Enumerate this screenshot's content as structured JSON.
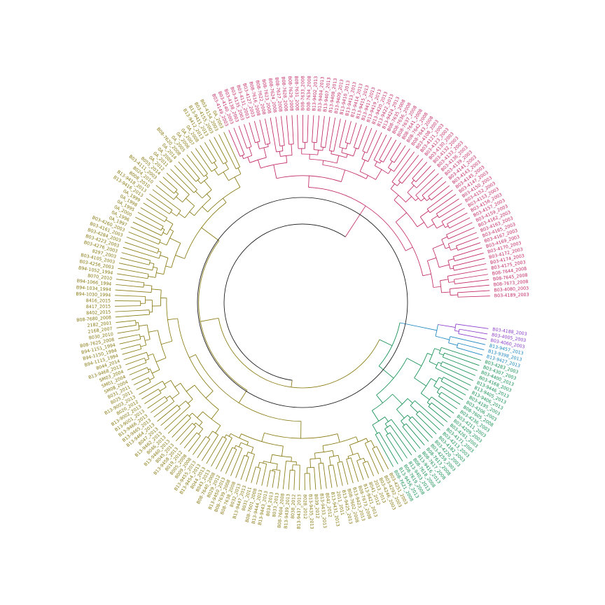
{
  "clades": [
    {
      "id": "purple",
      "color": "#8b3ec9",
      "labels": [
        "B03-4188_2003",
        "B03-4005_2003",
        "B03-4060_2003"
      ]
    },
    {
      "id": "blue",
      "color": "#1b86c0",
      "labels": [
        "B13-9457_2013",
        "B13-9398_2013",
        "B13-9427_2013"
      ]
    },
    {
      "id": "green",
      "color": "#138f52",
      "labels": [
        "B03-4283_2003",
        "B03-4307_2003",
        "B03-4400_2013",
        "B03-4168_2003",
        "B13-9446_2013",
        "B13-9405_2013",
        "B13-9406_2013",
        "B03-4195_2003",
        "B03-4206_2003",
        "B08-7605_2008",
        "B03-4236_2003",
        "B03-4211_2003",
        "B03-4209_2003",
        "B03-4261_2003",
        "B03-4171_2003",
        "B03-4213_2003",
        "B03-4182_2003",
        "B03-4220_2003",
        "B03-4259_2003",
        "B08-7613_2008",
        "B08-7617_2008",
        "B13-9416_2013",
        "B08-7618_2008",
        "B13-9403_2013",
        "B08-7619_2008",
        "B13-9456_2013",
        "B08-7621_2008"
      ]
    },
    {
      "id": "olive",
      "color": "#8a7a12",
      "labels": [
        "B03-4251_2003",
        "B03-4292_2003",
        "B03-4246_2003",
        "2013_2013",
        "8041_2012",
        "B13-9421_2013",
        "B08-7673_2008",
        "B13-9423_2013",
        "B08-7602_2008",
        "B13-9425_2013",
        "2011_2011",
        "B13-9431_2013",
        "8042_2012",
        "B13-9433_2013",
        "8039_2012",
        "B13-9435_2013",
        "8028_2012",
        "B13-9437_2013",
        "8038_2012",
        "B13-9439_2013",
        "B08-7604_2008",
        "8033_2013",
        "8034_2013",
        "B13-9443_2013",
        "B13-9444_2013",
        "B08-7601_2008",
        "8031_2011",
        "B13-9447_2013",
        "8032_2013",
        "B08-7638_2008",
        "B08-7639_2008",
        "B13-9450_2013",
        "8029_2012",
        "B08-7640_2008",
        "8043_2013",
        "8044_2013",
        "B13-9454_2013",
        "B13-9455_2013",
        "8009_2008",
        "8005_2008",
        "8019_2012",
        "B13-9458_2013",
        "8045_2013",
        "B13-9460_2013",
        "8046_2013",
        "B13-9462_2013",
        "8047_2013",
        "B13-9464_2013",
        "B13-9465_2013",
        "B13-9466_2013",
        "B13-9001_2013",
        "B13-9002_2013",
        "8020_2012",
        "B13-9003_2013",
        "8025_2011",
        "8031_2011",
        "SM08_2004",
        "SM01_2004",
        "SM03_2004",
        "B13-9468_2013",
        "8044_2014",
        "B94-1115_1994",
        "B94-1150_1994",
        "B94-1151_1994",
        "B08-7625_2008",
        "8030_2010",
        "2168_2007",
        "2182_2001",
        "B08-7680_2008",
        "8402_2015",
        "8417_2015",
        "8416_2015",
        "B94-1030_1994",
        "B94-1034_1994",
        "B94-1066_1994",
        "8070_2010",
        "B94-1052_1994",
        "B03-4256_2003",
        "B03-4105_2003",
        "8297_2003",
        "B03-4276_2003",
        "B03-4223_2003",
        "B03-4284_2003",
        "B03-4161_2003",
        "B03-4260_2003",
        "0A_1997",
        "0A_1996",
        "0A_2000",
        "0A_1995",
        "0A_1998",
        "0A_1999",
        "B13-9416_2013",
        "B13-9418_2013",
        "8008_2010",
        "8024_2010",
        "B03-4111_2003",
        "8055_2014",
        "0A_2012",
        "0A_2011",
        "0A_2009",
        "0A_2014",
        "B08-7620_2008",
        "0A_2005",
        "0A_2006",
        "0A_2007",
        "0A_2008",
        "B13-9412_2013",
        "B13-9411_2013",
        "B03-4155_2003",
        "B03-4154_2003",
        "0A_2003"
      ]
    },
    {
      "id": "magenta",
      "color": "#c22865",
      "labels": [
        "B03-4149_2003",
        "B03-4140_2003",
        "B03-4138_2003",
        "B03-4135_2003",
        "B03-4131_2003",
        "B03-4127_2003",
        "B08-7616_2008",
        "B08-7622_2008",
        "B08-7623_2008",
        "B08-7624_2008",
        "B08-7627_2008",
        "B08-7628_2008",
        "B08-7629_2008",
        "B08-7631_2008",
        "B08-7633_2008",
        "B08-7634_2008",
        "B13-9402_2013",
        "B13-9404_2013",
        "B13-9407_2013",
        "B13-9408_2013",
        "B13-9409_2013",
        "B13-9410_2013",
        "B13-9413_2013",
        "B13-9414_2013",
        "B13-9415_2013",
        "B13-9417_2013",
        "B13-9419_2013",
        "B13-9420_2013",
        "B13-9422_2013",
        "B13-9424_2013",
        "B08-7635_2008",
        "B08-7636_2008",
        "B08-7637_2008",
        "B08-7641_2008",
        "B08-7642_2008",
        "B08-7643_2008",
        "B03-4108_2003",
        "B03-4121_2003",
        "B03-4123_2003",
        "B03-4130_2003",
        "B03-4132_2003",
        "B03-4133_2003",
        "B03-4136_2003",
        "B03-4139_2003",
        "B03-4141_2003",
        "B03-4143_2003",
        "B03-4145_2003",
        "B03-4147_2003",
        "B03-4150_2003",
        "B03-4152_2003",
        "B03-4153_2003",
        "B03-4156_2003",
        "B03-4157_2003",
        "B03-4159_2003",
        "B03-4162_2003",
        "B03-4163_2003",
        "B03-4165_2003",
        "B03-4167_2003",
        "B03-4169_2003",
        "B03-4170_2003",
        "B03-4172_2003",
        "B03-4174_2003",
        "B03-4175_2003",
        "B08-7644_2008",
        "B08-7645_2008",
        "B08-7673_2008",
        "B03-4080_2003",
        "B03-4189_2003"
      ]
    }
  ]
}
